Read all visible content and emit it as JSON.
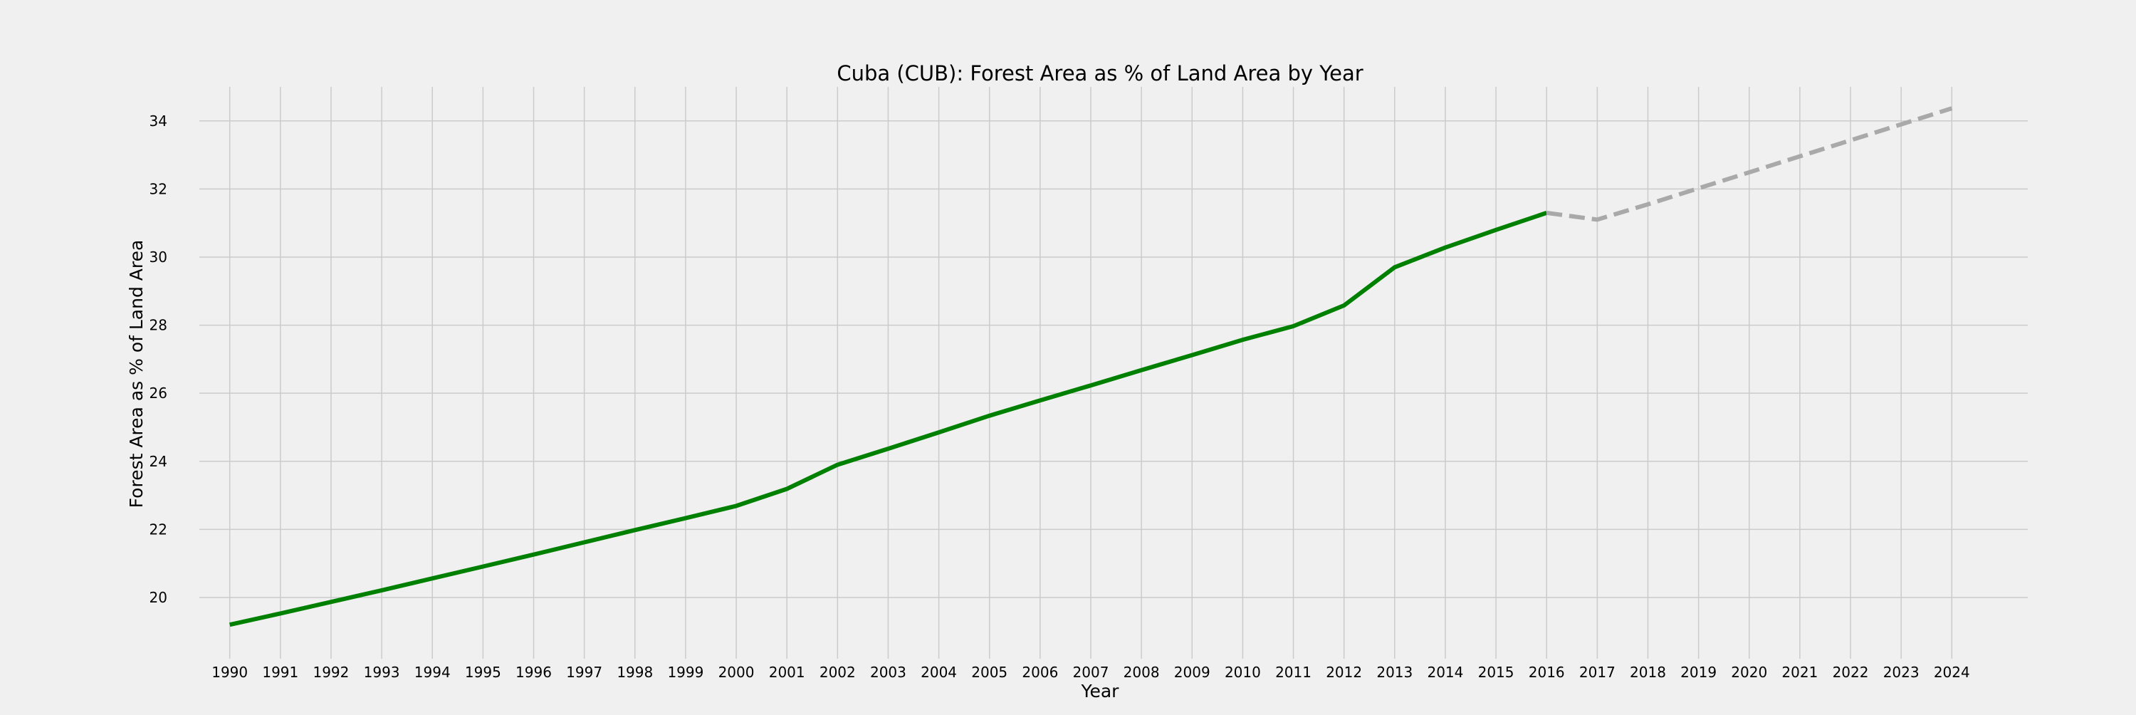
{
  "chart_data": {
    "type": "line",
    "title": "Cuba (CUB): Forest Area as % of Land Area by Year",
    "xlabel": "Year",
    "ylabel": "Forest Area as % of Land Area",
    "x": [
      "1990",
      "1991",
      "1992",
      "1993",
      "1994",
      "1995",
      "1996",
      "1997",
      "1998",
      "1999",
      "2000",
      "2001",
      "2002",
      "2003",
      "2004",
      "2005",
      "2006",
      "2007",
      "2008",
      "2009",
      "2010",
      "2011",
      "2012",
      "2013",
      "2014",
      "2015",
      "2016",
      "2017",
      "2018",
      "2019",
      "2020",
      "2021",
      "2022",
      "2023",
      "2024"
    ],
    "xlim": [
      1989.4,
      2025.5
    ],
    "ylim": [
      18.2,
      35.0
    ],
    "yticks": [
      20,
      22,
      24,
      26,
      28,
      30,
      32,
      34
    ],
    "grid": true,
    "series": [
      {
        "style": "solid",
        "color": "#008000",
        "x": [
          1990,
          1991,
          1992,
          1993,
          1994,
          1995,
          1996,
          1997,
          1998,
          1999,
          2000,
          2001,
          2002,
          2003,
          2004,
          2005,
          2006,
          2007,
          2008,
          2009,
          2010,
          2011,
          2012,
          2013,
          2014,
          2015,
          2016
        ],
        "y": [
          19.2,
          19.53,
          19.87,
          20.21,
          20.56,
          20.91,
          21.26,
          21.62,
          21.98,
          22.33,
          22.69,
          23.19,
          23.9,
          24.37,
          24.85,
          25.34,
          25.79,
          26.23,
          26.68,
          27.12,
          27.57,
          27.97,
          28.58,
          29.7,
          30.28,
          30.8,
          31.3
        ]
      },
      {
        "style": "dashed",
        "color": "#a9a9a9",
        "x": [
          2016,
          2017,
          2018,
          2019,
          2020,
          2021,
          2022,
          2023,
          2024
        ],
        "y": [
          31.3,
          31.1,
          31.55,
          32.02,
          32.49,
          32.96,
          33.43,
          33.9,
          34.37
        ]
      }
    ]
  }
}
